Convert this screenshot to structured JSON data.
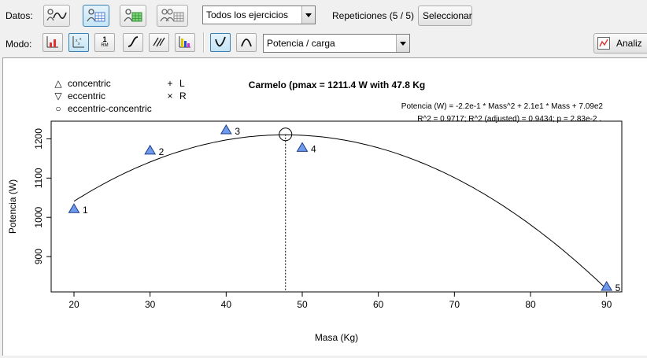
{
  "toolbar": {
    "datos_label": "Datos:",
    "modo_label": "Modo:",
    "exercise_select": "Todos los ejercicios",
    "repetitions_label": "Repeticiones (5 / 5)",
    "select_button": "Seleccionar",
    "mode_select": "Potencia / carga",
    "analyze_button": "Analiz",
    "mode_rm_icon_text": "1",
    "mode_rm_icon_sub": "RM"
  },
  "chart_data": {
    "type": "scatter",
    "title": "Carmelo (pmax = 1211.4 W with 47.8 Kg",
    "xlabel": "Masa (Kg)",
    "ylabel": "Potencia (W)",
    "xlim": [
      17,
      92
    ],
    "ylim": [
      810,
      1245
    ],
    "x_ticks": [
      20,
      30,
      40,
      50,
      60,
      70,
      80,
      90
    ],
    "y_ticks": [
      900,
      1000,
      1100,
      1200
    ],
    "points": [
      {
        "label": "1",
        "x": 20,
        "y": 1022
      },
      {
        "label": "2",
        "x": 30,
        "y": 1171
      },
      {
        "label": "3",
        "x": 40,
        "y": 1223
      },
      {
        "label": "4",
        "x": 50,
        "y": 1178
      },
      {
        "label": "5",
        "x": 90,
        "y": 824
      }
    ],
    "fit": {
      "a": -0.22,
      "b": 21.0,
      "c": 709.0,
      "x_from": 20,
      "x_to": 90
    },
    "pmax": {
      "x": 47.8,
      "y": 1211.4
    },
    "equation": "Potencia (W) = -2.2e-1 * Mass^2 + 2.1e1 * Mass + 7.09e2",
    "stats": "R^2 = 0.9717; R^2 (adjusted) = 0.9434; p = 2.83e-2 .",
    "legend": [
      {
        "symbol": "△",
        "label": "concentric"
      },
      {
        "symbol": "▽",
        "label": "eccentric"
      },
      {
        "symbol": "○",
        "label": "eccentric-concentric"
      },
      {
        "symbol": "+",
        "label": "L"
      },
      {
        "symbol": "×",
        "label": "R"
      }
    ],
    "marker_color": "#6f9bec"
  }
}
